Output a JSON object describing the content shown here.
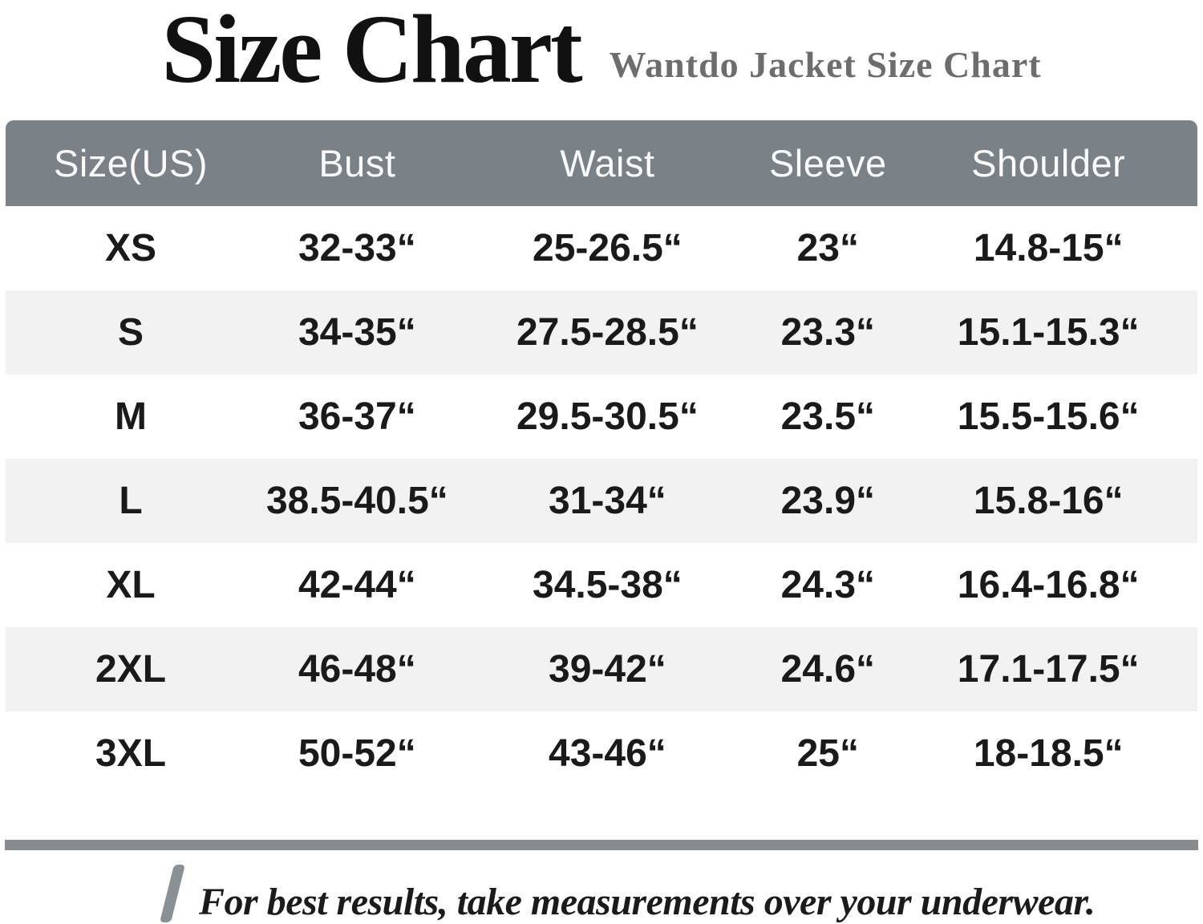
{
  "page_title": {
    "main": "Size Chart",
    "subtitle": "Wantdo Jacket Size Chart"
  },
  "chart_data": {
    "type": "table",
    "title": "Size Chart",
    "subtitle": "Wantdo Jacket Size Chart",
    "columns": [
      "Size(US)",
      "Bust",
      "Waist",
      "Sleeve",
      "Shoulder"
    ],
    "rows": [
      {
        "size": "XS",
        "values": [
          "32-33“",
          "25-26.5“",
          "23“",
          "14.8-15“"
        ]
      },
      {
        "size": "S",
        "values": [
          "34-35“",
          "27.5-28.5“",
          "23.3“",
          "15.1-15.3“"
        ]
      },
      {
        "size": "M",
        "values": [
          "36-37“",
          "29.5-30.5“",
          "23.5“",
          "15.5-15.6“"
        ]
      },
      {
        "size": "L",
        "values": [
          "38.5-40.5“",
          "31-34“",
          "23.9“",
          "15.8-16“"
        ]
      },
      {
        "size": "XL",
        "values": [
          "42-44“",
          "34.5-38“",
          "24.3“",
          "16.4-16.8“"
        ]
      },
      {
        "size": "2XL",
        "values": [
          "46-48“",
          "39-42“",
          "24.6“",
          "17.1-17.5“"
        ]
      },
      {
        "size": "3XL",
        "values": [
          "50-52“",
          "43-46“",
          "25“",
          "18-18.5“"
        ]
      }
    ]
  },
  "footer": {
    "note": "For best results, take measurements over your underwear."
  },
  "colors": {
    "header_bg": "#7b8287",
    "header_text": "#fbfbfb",
    "row_bg": "#ffffff",
    "row_alt_bg": "#f2f2f2",
    "cell_text": "#1a1a1a",
    "subtitle_text": "#6d6d6d",
    "divider": "#858b8f",
    "slash": "#8a9094"
  }
}
